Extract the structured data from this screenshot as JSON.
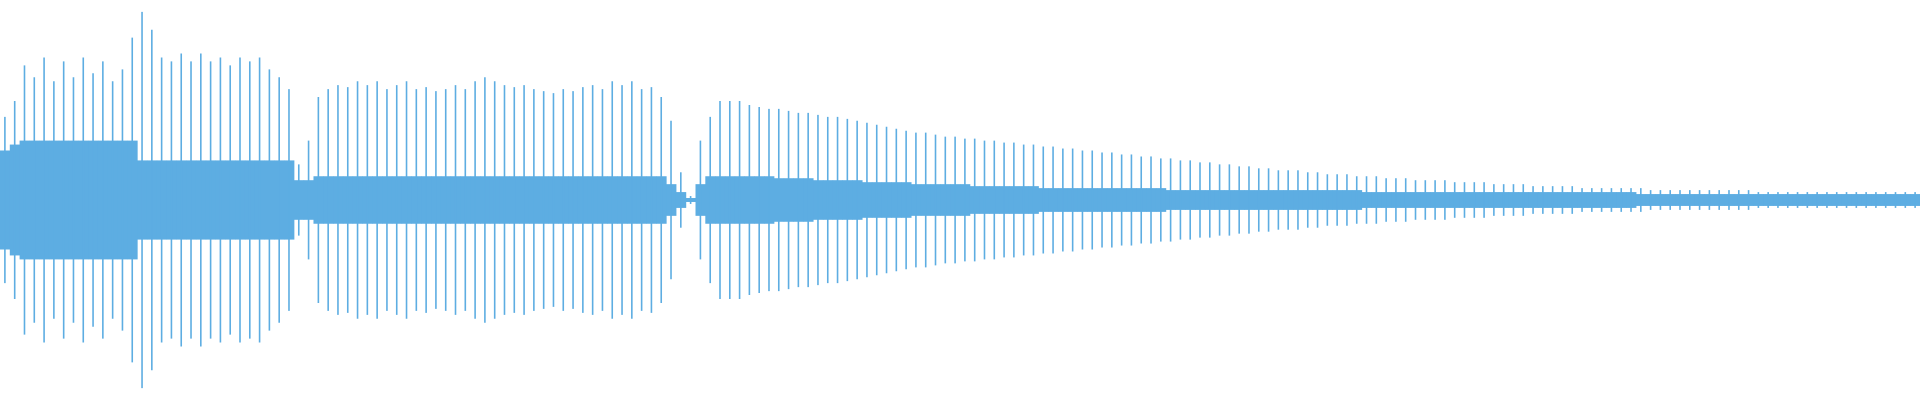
{
  "chart_data": {
    "type": "waveform",
    "color": "#5dade2",
    "ylim": [
      -1,
      1
    ],
    "peak": [
      0.42,
      0.5,
      0.68,
      0.62,
      0.72,
      0.6,
      0.7,
      0.62,
      0.72,
      0.64,
      0.7,
      0.6,
      0.66,
      0.82,
      0.95,
      0.86,
      0.72,
      0.7,
      0.74,
      0.7,
      0.74,
      0.7,
      0.72,
      0.68,
      0.72,
      0.7,
      0.72,
      0.66,
      0.62,
      0.56,
      0.18,
      0.3,
      0.52,
      0.56,
      0.58,
      0.57,
      0.6,
      0.58,
      0.6,
      0.56,
      0.58,
      0.6,
      0.56,
      0.57,
      0.55,
      0.56,
      0.58,
      0.56,
      0.6,
      0.62,
      0.6,
      0.58,
      0.57,
      0.58,
      0.56,
      0.55,
      0.54,
      0.56,
      0.55,
      0.57,
      0.58,
      0.56,
      0.6,
      0.58,
      0.6,
      0.56,
      0.57,
      0.52,
      0.4,
      0.14,
      0.02,
      0.3,
      0.42,
      0.5,
      0.5,
      0.5,
      0.48,
      0.47,
      0.46,
      0.46,
      0.45,
      0.44,
      0.44,
      0.43,
      0.42,
      0.42,
      0.41,
      0.4,
      0.39,
      0.38,
      0.37,
      0.36,
      0.35,
      0.34,
      0.34,
      0.33,
      0.32,
      0.32,
      0.31,
      0.31,
      0.3,
      0.3,
      0.29,
      0.29,
      0.28,
      0.28,
      0.27,
      0.27,
      0.26,
      0.26,
      0.25,
      0.25,
      0.24,
      0.24,
      0.23,
      0.23,
      0.22,
      0.22,
      0.21,
      0.21,
      0.2,
      0.2,
      0.19,
      0.19,
      0.18,
      0.18,
      0.17,
      0.17,
      0.16,
      0.16,
      0.15,
      0.15,
      0.15,
      0.14,
      0.14,
      0.13,
      0.13,
      0.13,
      0.12,
      0.12,
      0.12,
      0.11,
      0.11,
      0.11,
      0.1,
      0.1,
      0.1,
      0.1,
      0.09,
      0.09,
      0.09,
      0.09,
      0.08,
      0.08,
      0.08,
      0.08,
      0.07,
      0.07,
      0.07,
      0.07,
      0.07,
      0.06,
      0.06,
      0.06,
      0.06,
      0.06,
      0.06,
      0.06,
      0.05,
      0.05,
      0.05,
      0.05,
      0.05,
      0.05,
      0.05,
      0.05,
      0.05,
      0.05,
      0.05,
      0.04,
      0.04,
      0.04,
      0.04,
      0.04,
      0.04,
      0.04,
      0.04,
      0.04,
      0.04,
      0.04,
      0.04,
      0.04,
      0.04,
      0.04,
      0.04,
      0.04
    ],
    "body": [
      0.25,
      0.28,
      0.3,
      0.3,
      0.3,
      0.3,
      0.3,
      0.3,
      0.3,
      0.3,
      0.3,
      0.3,
      0.3,
      0.3,
      0.2,
      0.2,
      0.2,
      0.2,
      0.2,
      0.2,
      0.2,
      0.2,
      0.2,
      0.2,
      0.2,
      0.2,
      0.2,
      0.2,
      0.2,
      0.2,
      0.1,
      0.1,
      0.12,
      0.12,
      0.12,
      0.12,
      0.12,
      0.12,
      0.12,
      0.12,
      0.12,
      0.12,
      0.12,
      0.12,
      0.12,
      0.12,
      0.12,
      0.12,
      0.12,
      0.12,
      0.12,
      0.12,
      0.12,
      0.12,
      0.12,
      0.12,
      0.12,
      0.12,
      0.12,
      0.12,
      0.12,
      0.12,
      0.12,
      0.12,
      0.12,
      0.12,
      0.12,
      0.12,
      0.08,
      0.04,
      0.01,
      0.08,
      0.12,
      0.12,
      0.12,
      0.12,
      0.12,
      0.12,
      0.12,
      0.11,
      0.11,
      0.11,
      0.11,
      0.1,
      0.1,
      0.1,
      0.1,
      0.1,
      0.09,
      0.09,
      0.09,
      0.09,
      0.09,
      0.08,
      0.08,
      0.08,
      0.08,
      0.08,
      0.08,
      0.07,
      0.07,
      0.07,
      0.07,
      0.07,
      0.07,
      0.07,
      0.06,
      0.06,
      0.06,
      0.06,
      0.06,
      0.06,
      0.06,
      0.06,
      0.06,
      0.06,
      0.06,
      0.06,
      0.06,
      0.05,
      0.05,
      0.05,
      0.05,
      0.05,
      0.05,
      0.05,
      0.05,
      0.05,
      0.05,
      0.05,
      0.05,
      0.05,
      0.05,
      0.05,
      0.05,
      0.05,
      0.05,
      0.05,
      0.05,
      0.04,
      0.04,
      0.04,
      0.04,
      0.04,
      0.04,
      0.04,
      0.04,
      0.04,
      0.04,
      0.04,
      0.04,
      0.04,
      0.04,
      0.04,
      0.04,
      0.04,
      0.04,
      0.04,
      0.04,
      0.04,
      0.04,
      0.04,
      0.04,
      0.04,
      0.04,
      0.04,
      0.04,
      0.03,
      0.03,
      0.03,
      0.03,
      0.03,
      0.03,
      0.03,
      0.03,
      0.03,
      0.03,
      0.03,
      0.03,
      0.03,
      0.03,
      0.03,
      0.03,
      0.03,
      0.03,
      0.03,
      0.03,
      0.03,
      0.03,
      0.03,
      0.03,
      0.03,
      0.03,
      0.03,
      0.03,
      0.03
    ]
  }
}
